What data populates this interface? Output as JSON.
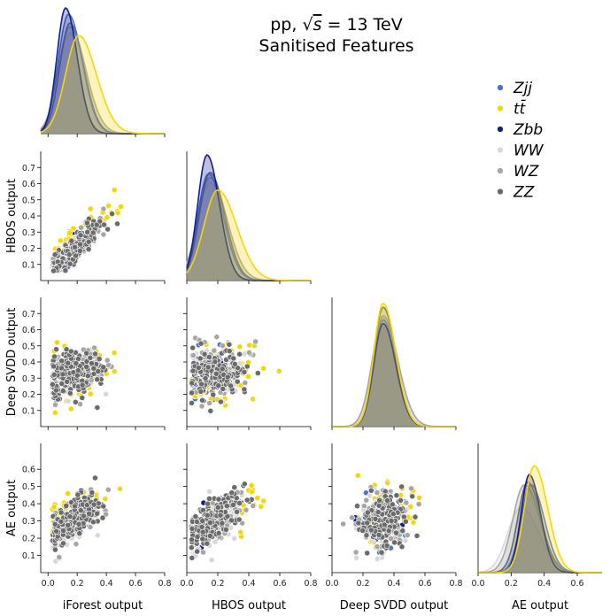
{
  "title": {
    "line1_prefix": "pp, ",
    "line1_sqrt": "√",
    "line1_s": "s",
    "line1_suffix": " = 13 TeV",
    "line2": "Sanitised Features"
  },
  "legend": {
    "placement": "top-right",
    "entries": [
      {
        "label": "Zjj",
        "color": "#4a72d6"
      },
      {
        "label": "tt̄",
        "color": "#f5d60a"
      },
      {
        "label": "Zbb",
        "color": "#141e8c"
      },
      {
        "label": "WW",
        "color": "#d8d8d8"
      },
      {
        "label": "WZ",
        "color": "#a6a6a6"
      },
      {
        "label": "ZZ",
        "color": "#6b6b6b"
      }
    ]
  },
  "variables": [
    {
      "label": "iForest output",
      "range": [
        -0.05,
        0.8
      ],
      "ticks": [
        0.0,
        0.2,
        0.4,
        0.6,
        0.8
      ],
      "tick_labels": [
        "0.0",
        "0.2",
        "0.4",
        "0.6",
        "0.8"
      ]
    },
    {
      "label": "HBOS output",
      "range": [
        0.0,
        0.8
      ],
      "ticks": [
        0.1,
        0.2,
        0.3,
        0.4,
        0.5,
        0.6,
        0.7
      ],
      "tick_labels": [
        "0.1",
        "0.2",
        "0.3",
        "0.4",
        "0.5",
        "0.6",
        "0.7"
      ]
    },
    {
      "label": "Deep SVDD output",
      "range": [
        0.0,
        0.8
      ],
      "ticks": [
        0.1,
        0.2,
        0.3,
        0.4,
        0.5,
        0.6,
        0.7
      ],
      "tick_labels": [
        "0.1",
        "0.2",
        "0.3",
        "0.4",
        "0.5",
        "0.6",
        "0.7"
      ]
    },
    {
      "label": "AE output",
      "range": [
        0.0,
        0.75
      ],
      "ticks": [
        0.1,
        0.2,
        0.3,
        0.4,
        0.5,
        0.6
      ],
      "tick_labels": [
        "0.1",
        "0.2",
        "0.3",
        "0.4",
        "0.5",
        "0.6"
      ]
    }
  ],
  "bottom_ticks": [
    {
      "ticks": [
        0.0,
        0.2,
        0.4,
        0.6,
        0.8
      ],
      "tick_labels": [
        "0.0",
        "0.2",
        "0.4",
        "0.6",
        "0.8"
      ]
    },
    {
      "ticks": [
        0.0,
        0.2,
        0.4,
        0.6,
        0.8
      ],
      "tick_labels": [
        "0.0",
        "0.2",
        "0.4",
        "0.6",
        "0.8"
      ]
    },
    {
      "ticks": [
        0.0,
        0.2,
        0.4,
        0.6,
        0.8
      ],
      "tick_labels": [
        "0.0",
        "0.2",
        "0.4",
        "0.6",
        "0.8"
      ]
    },
    {
      "ticks": [
        0.0,
        0.2,
        0.4,
        0.6
      ],
      "tick_labels": [
        "0.0",
        "0.2",
        "0.4",
        "0.6"
      ]
    }
  ],
  "chart_data": {
    "type": "scatter",
    "layout": "pairplot-lower-triangle-with-kde-diagonal",
    "series_names": [
      "Zjj",
      "tt̄",
      "Zbb",
      "WW",
      "WZ",
      "ZZ"
    ],
    "series_colors": [
      "#4a72d6",
      "#f5d60a",
      "#141e8c",
      "#d8d8d8",
      "#a6a6a6",
      "#6b6b6b"
    ],
    "kde_modes": [
      {
        "variable": "iForest output",
        "modes": [
          0.14,
          0.21,
          0.12,
          0.15,
          0.15,
          0.15
        ]
      },
      {
        "variable": "HBOS output",
        "modes": [
          0.14,
          0.2,
          0.13,
          0.15,
          0.15,
          0.15
        ]
      },
      {
        "variable": "Deep SVDD output",
        "modes": [
          0.33,
          0.33,
          0.33,
          0.33,
          0.33,
          0.33
        ]
      },
      {
        "variable": "AE output",
        "modes": [
          0.32,
          0.34,
          0.31,
          0.26,
          0.28,
          0.3
        ]
      }
    ],
    "pairs": [
      {
        "x": "iForest output",
        "y": "HBOS output",
        "relation": "strong positive correlation"
      },
      {
        "x": "iForest output",
        "y": "Deep SVDD output",
        "relation": "weak correlation"
      },
      {
        "x": "HBOS output",
        "y": "Deep SVDD output",
        "relation": "weak correlation"
      },
      {
        "x": "iForest output",
        "y": "AE output",
        "relation": "positive correlation"
      },
      {
        "x": "HBOS output",
        "y": "AE output",
        "relation": "positive correlation"
      },
      {
        "x": "Deep SVDD output",
        "y": "AE output",
        "relation": "weak correlation"
      }
    ],
    "grid": false
  }
}
